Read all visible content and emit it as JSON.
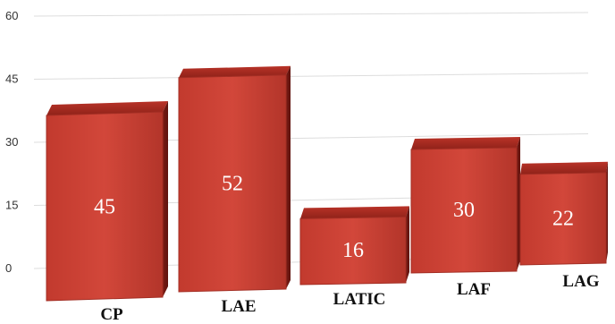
{
  "chart_data": {
    "type": "bar",
    "style": "3d-perspective",
    "title": "",
    "xlabel": "",
    "ylabel": "",
    "categories": [
      "CP",
      "LAE",
      "LATIC",
      "LAF",
      "LAG"
    ],
    "values": [
      45,
      52,
      16,
      30,
      22
    ],
    "ylim": [
      0,
      60
    ],
    "yticks": [
      "0",
      "15",
      "30",
      "45",
      "60"
    ],
    "data_labels": [
      "45",
      "52",
      "16",
      "30",
      "22"
    ],
    "grid": true,
    "legend": "none",
    "colors": {
      "bar": "#c0392b",
      "grid": "#dddddd"
    }
  }
}
